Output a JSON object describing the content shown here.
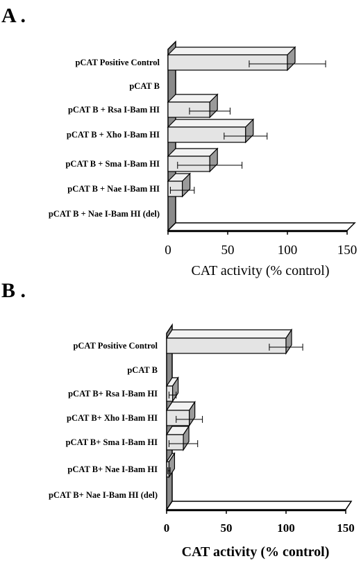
{
  "chart_data": [
    {
      "type": "bar",
      "panel_label": "A .",
      "categories": [
        "pCAT Positive Control",
        "pCAT B",
        "pCAT B + Rsa I-Bam HI",
        "pCAT B + Xho I-Bam HI",
        "pCAT B + Sma I-Bam HI",
        "pCAT B + Nae I-Bam HI",
        "pCAT B + Nae I-Bam HI (del)"
      ],
      "values": [
        100,
        0,
        35,
        65,
        35,
        12,
        0
      ],
      "errors": [
        32,
        0,
        17,
        18,
        27,
        10,
        0
      ],
      "xticks": [
        "0",
        "50",
        "100",
        "150"
      ],
      "xlim": [
        0,
        150
      ],
      "xlabel": "CAT activity (% control)",
      "orientation": "horizontal",
      "style": "3d",
      "bar_color": "#e4e4e4"
    },
    {
      "type": "bar",
      "panel_label": "B .",
      "categories": [
        "pCAT Positive Control",
        "pCAT B",
        "pCAT B+ Rsa I-Bam HI",
        "pCAT B+ Xho I-Bam HI",
        "pCAT B+ Sma I-Bam HI",
        "pCAT B+ Nae I-Bam HI",
        "pCAT B+ Nae I-Bam HI (del)"
      ],
      "values": [
        100,
        0,
        5,
        19,
        14,
        2,
        0
      ],
      "errors": [
        14,
        0,
        3,
        11,
        12,
        1,
        0
      ],
      "xticks": [
        "0",
        "50",
        "100",
        "150"
      ],
      "xlim": [
        0,
        150
      ],
      "xlabel": "CAT activity (% control)",
      "orientation": "horizontal",
      "style": "3d",
      "bar_color": "#e4e4e4"
    }
  ]
}
